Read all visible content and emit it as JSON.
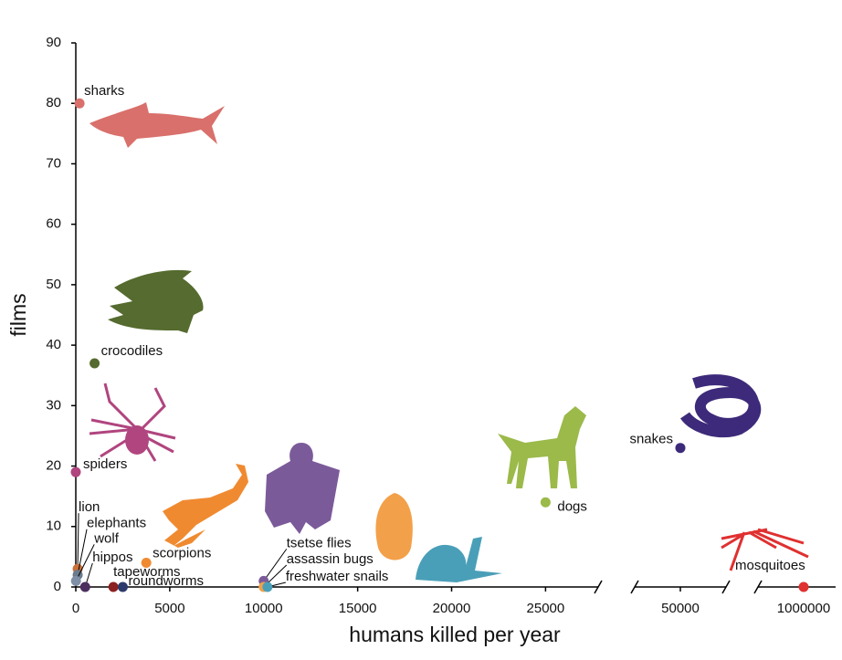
{
  "chart_data": {
    "type": "scatter",
    "x_label": "humans killed per year",
    "y_label": "films",
    "ylim": [
      0,
      90
    ],
    "yticks": [
      0,
      10,
      20,
      30,
      40,
      50,
      60,
      70,
      80,
      90
    ],
    "x_segments": [
      {
        "xlim": [
          0,
          27800
        ],
        "xticks": [
          0,
          5000,
          10000,
          15000,
          20000,
          25000
        ]
      },
      {
        "xlim": [
          45000,
          55000
        ],
        "xticks": [
          50000
        ]
      },
      {
        "xlim": [
          900000,
          1070000
        ],
        "xticks": [
          1000000
        ]
      }
    ],
    "series": [
      {
        "name": "sharks",
        "color": "#d9706b",
        "x": [
          200
        ],
        "values": [
          80
        ]
      },
      {
        "name": "crocodiles",
        "color": "#556b2f",
        "x": [
          1000
        ],
        "values": [
          37
        ]
      },
      {
        "name": "spiders",
        "color": "#b0457f",
        "x": [
          0
        ],
        "values": [
          19
        ]
      },
      {
        "name": "lion",
        "color": "#c9703a",
        "x": [
          100
        ],
        "values": [
          3
        ]
      },
      {
        "name": "elephants",
        "color": "#6a7b8c",
        "x": [
          100
        ],
        "values": [
          2
        ]
      },
      {
        "name": "wolf",
        "color": "#7f8fa6",
        "x": [
          10
        ],
        "values": [
          1
        ]
      },
      {
        "name": "hippos",
        "color": "#4b2e5e",
        "x": [
          500
        ],
        "values": [
          0
        ]
      },
      {
        "name": "tapeworms",
        "color": "#8b2020",
        "x": [
          2000
        ],
        "values": [
          0
        ]
      },
      {
        "name": "roundworms",
        "color": "#2b3a6b",
        "x": [
          2500
        ],
        "values": [
          0
        ]
      },
      {
        "name": "scorpions",
        "color": "#f08a30",
        "x": [
          3750
        ],
        "values": [
          4
        ]
      },
      {
        "name": "tsetse flies",
        "color": "#7b5a9a",
        "x": [
          10000
        ],
        "values": [
          1
        ]
      },
      {
        "name": "assassin bugs",
        "color": "#f3a04a",
        "x": [
          10000
        ],
        "values": [
          0
        ]
      },
      {
        "name": "freshwater snails",
        "color": "#4a9fb8",
        "x": [
          10200
        ],
        "values": [
          0
        ]
      },
      {
        "name": "dogs",
        "color": "#9bba4a",
        "x": [
          25000
        ],
        "values": [
          14
        ]
      },
      {
        "name": "snakes",
        "color": "#3d2a7a",
        "x": [
          50000
        ],
        "values": [
          23
        ]
      },
      {
        "name": "mosquitoes",
        "color": "#e03030",
        "x": [
          1000000
        ],
        "values": [
          0
        ]
      }
    ]
  }
}
